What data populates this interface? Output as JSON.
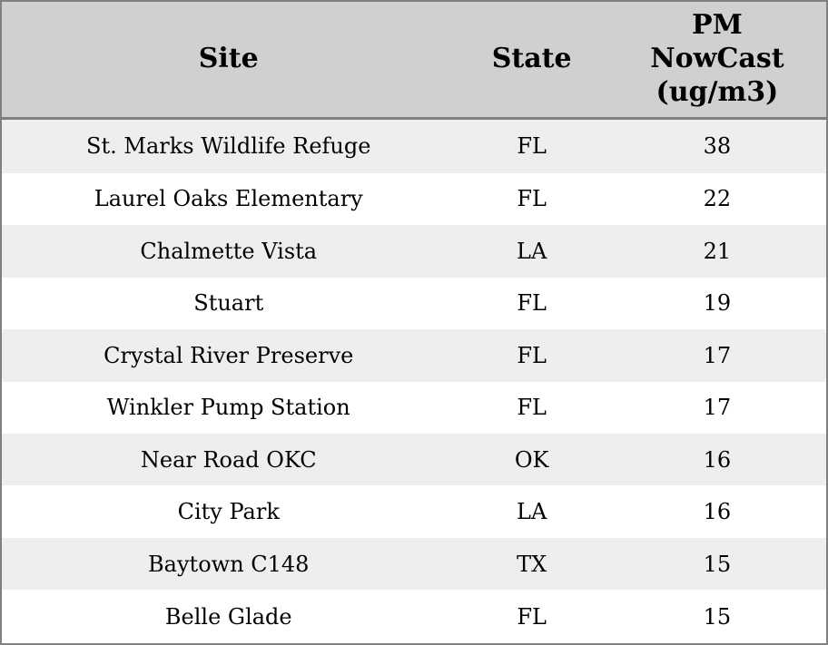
{
  "colors": {
    "header_bg": "#d0d0d0",
    "row_odd_bg": "#eeeeee",
    "row_even_bg": "#ffffff",
    "border": "#808080",
    "text": "#000000"
  },
  "table": {
    "columns": [
      {
        "label": "Site"
      },
      {
        "label": "State"
      },
      {
        "label": "PM\nNowCast\n(ug/m3)"
      }
    ],
    "rows": [
      {
        "site": "St. Marks Wildlife Refuge",
        "state": "FL",
        "pm_nowcast": 38
      },
      {
        "site": "Laurel Oaks Elementary",
        "state": "FL",
        "pm_nowcast": 22
      },
      {
        "site": "Chalmette Vista",
        "state": "LA",
        "pm_nowcast": 21
      },
      {
        "site": "Stuart",
        "state": "FL",
        "pm_nowcast": 19
      },
      {
        "site": "Crystal River Preserve",
        "state": "FL",
        "pm_nowcast": 17
      },
      {
        "site": "Winkler Pump Station",
        "state": "FL",
        "pm_nowcast": 17
      },
      {
        "site": "Near Road OKC",
        "state": "OK",
        "pm_nowcast": 16
      },
      {
        "site": "City Park",
        "state": "LA",
        "pm_nowcast": 16
      },
      {
        "site": "Baytown C148",
        "state": "TX",
        "pm_nowcast": 15
      },
      {
        "site": "Belle Glade",
        "state": "FL",
        "pm_nowcast": 15
      }
    ]
  },
  "chart_data": {
    "type": "table",
    "title": "",
    "columns": [
      "Site",
      "State",
      "PM NowCast (ug/m3)"
    ],
    "rows": [
      [
        "St. Marks Wildlife Refuge",
        "FL",
        38
      ],
      [
        "Laurel Oaks Elementary",
        "FL",
        22
      ],
      [
        "Chalmette Vista",
        "LA",
        21
      ],
      [
        "Stuart",
        "FL",
        19
      ],
      [
        "Crystal River Preserve",
        "FL",
        17
      ],
      [
        "Winkler Pump Station",
        "FL",
        17
      ],
      [
        "Near Road OKC",
        "OK",
        16
      ],
      [
        "City Park",
        "LA",
        16
      ],
      [
        "Baytown C148",
        "TX",
        15
      ],
      [
        "Belle Glade",
        "FL",
        15
      ]
    ],
    "layout_hints": {
      "header_background": "#d0d0d0",
      "zebra_striping": true,
      "text_alignment": "center"
    }
  }
}
